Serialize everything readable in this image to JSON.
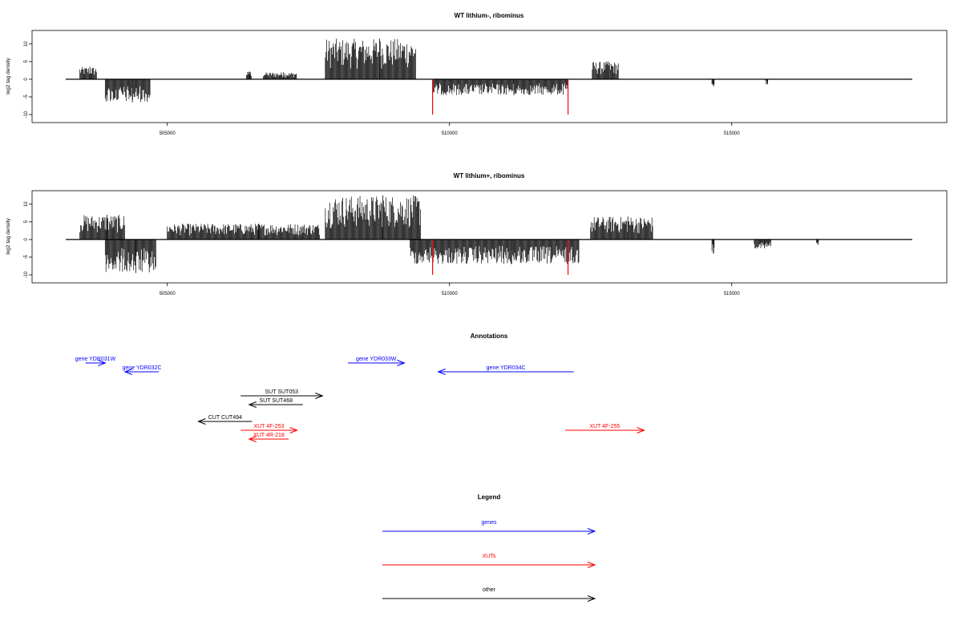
{
  "chart_data": [
    {
      "type": "bar",
      "title": "WT lithium-, ribominus",
      "ylabel": "log2 tag density",
      "xlabel": "",
      "xlim": [
        503200,
        518200
      ],
      "ylim": [
        -10,
        12
      ],
      "x_ticks": [
        505000,
        510000,
        515000
      ],
      "y_ticks": [
        -10,
        -5,
        0,
        5,
        10
      ],
      "y_tick_labels": [
        "-10",
        "-5",
        "0",
        "5",
        "10"
      ],
      "grid": false,
      "plus_strand_clusters": [
        {
          "x0": 503450,
          "x1": 503750,
          "max": 3.5
        },
        {
          "x0": 506400,
          "x1": 506500,
          "max": 2.2
        },
        {
          "x0": 506700,
          "x1": 507300,
          "max": 2.0
        },
        {
          "x0": 507800,
          "x1": 509400,
          "max": 11.5
        },
        {
          "x0": 512530,
          "x1": 513000,
          "max": 5.0
        }
      ],
      "minus_strand_clusters": [
        {
          "x0": 503900,
          "x1": 504700,
          "max": -6.5
        },
        {
          "x0": 509700,
          "x1": 512100,
          "max": -4.5
        },
        {
          "x0": 514650,
          "x1": 514700,
          "max": -2.0
        },
        {
          "x0": 515600,
          "x1": 515650,
          "max": -1.5
        }
      ],
      "red_markers": [
        509700,
        512100
      ],
      "red_marker_value": -10
    },
    {
      "type": "bar",
      "title": "WT lithium+, ribominus",
      "ylabel": "log2 tag density",
      "xlabel": "",
      "xlim": [
        503200,
        518200
      ],
      "ylim": [
        -10,
        12
      ],
      "x_ticks": [
        505000,
        510000,
        515000
      ],
      "y_ticks": [
        -10,
        -5,
        0,
        5,
        10
      ],
      "y_tick_labels": [
        "-10",
        "-5",
        "0",
        "5",
        "10"
      ],
      "grid": false,
      "plus_strand_clusters": [
        {
          "x0": 503450,
          "x1": 504250,
          "max": 7.0
        },
        {
          "x0": 505000,
          "x1": 507700,
          "max": 4.5
        },
        {
          "x0": 507800,
          "x1": 509500,
          "max": 12.5
        },
        {
          "x0": 512500,
          "x1": 513600,
          "max": 6.5
        }
      ],
      "minus_strand_clusters": [
        {
          "x0": 503900,
          "x1": 504800,
          "max": -9.5
        },
        {
          "x0": 509300,
          "x1": 512300,
          "max": -7.0
        },
        {
          "x0": 514650,
          "x1": 514700,
          "max": -4.0
        },
        {
          "x0": 515400,
          "x1": 515700,
          "max": -2.5
        },
        {
          "x0": 516500,
          "x1": 516550,
          "max": -1.5
        }
      ],
      "red_markers": [
        509700,
        512100
      ],
      "red_marker_value": -10
    }
  ],
  "annotations": {
    "title": "Annotations",
    "features": [
      {
        "label": "gene YDR031W",
        "strand": "+",
        "start": 503550,
        "end": 503900,
        "color": "#0000ff",
        "row": 0
      },
      {
        "label": "gene YDR032C",
        "strand": "-",
        "start": 504250,
        "end": 504850,
        "color": "#0000ff",
        "row": 1
      },
      {
        "label": "gene YDR033W",
        "strand": "+",
        "start": 508200,
        "end": 509200,
        "color": "#0000ff",
        "row": 0
      },
      {
        "label": "gene YDR034C",
        "strand": "-",
        "start": 509800,
        "end": 512200,
        "color": "#0000ff",
        "row": 1
      },
      {
        "label": "SUT SUT053",
        "strand": "+",
        "start": 506300,
        "end": 507750,
        "color": "#000000",
        "row": 3
      },
      {
        "label": "SUT SUT468",
        "strand": "-",
        "start": 506450,
        "end": 507400,
        "color": "#000000",
        "row": 4
      },
      {
        "label": "CUT CUT494",
        "strand": "-",
        "start": 505550,
        "end": 506500,
        "color": "#000000",
        "row": 5
      },
      {
        "label": "XUT 4F-253",
        "strand": "+",
        "start": 506300,
        "end": 507300,
        "color": "#ff0000",
        "row": 6
      },
      {
        "label": "XUT 4R-218",
        "strand": "-",
        "start": 506450,
        "end": 507150,
        "color": "#ff0000",
        "row": 7
      },
      {
        "label": "XUT 4F-255",
        "strand": "+",
        "start": 512050,
        "end": 513450,
        "color": "#ff0000",
        "row": 6
      }
    ]
  },
  "legend": {
    "title": "Legend",
    "items": [
      {
        "label": "genes",
        "color": "#0000ff"
      },
      {
        "label": "XUTs",
        "color": "#ff0000"
      },
      {
        "label": "other",
        "color": "#000000"
      }
    ]
  }
}
